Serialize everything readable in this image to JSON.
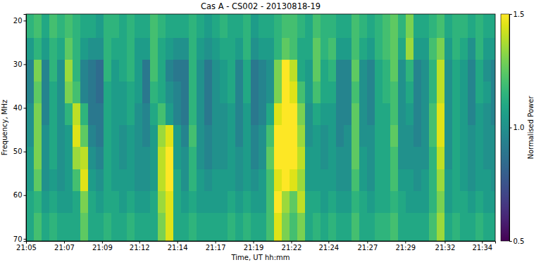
{
  "chart_data": {
    "type": "heatmap",
    "title": "Cas A - CS002 - 20130818-19",
    "x_label": "Time, UT hh:mm",
    "y_label": "Frequency, MHz",
    "color": "viridis",
    "x": [
      5,
      5.5,
      6,
      6.5,
      7,
      7.5,
      8,
      8.5,
      9,
      9.5,
      10,
      10.5,
      11,
      11.5,
      12,
      12.5,
      13,
      13.5,
      14,
      14.5,
      15,
      15.5,
      16,
      16.5,
      17,
      17.5,
      18,
      18.5,
      19,
      19.5,
      20,
      20.5,
      21,
      21.5,
      22,
      22.5,
      23,
      23.5,
      24,
      24.5,
      25,
      25.5,
      26,
      26.5,
      27,
      27.5,
      28,
      28.5,
      29,
      29.5,
      30,
      30.5,
      31,
      31.5,
      32,
      32.5,
      33,
      33.5,
      34,
      34.5,
      35,
      35.5
    ],
    "y": [
      18.5,
      24,
      29,
      34,
      39,
      44,
      49,
      54,
      59,
      64,
      70.5
    ],
    "xlim": [
      5,
      35.25
    ],
    "xticks": [
      {
        "value": 5,
        "label": "21:05"
      },
      {
        "value": 7.45,
        "label": "21:07"
      },
      {
        "value": 9.9,
        "label": "21:09"
      },
      {
        "value": 12.3,
        "label": "21:12"
      },
      {
        "value": 14.75,
        "label": "21:14"
      },
      {
        "value": 17.2,
        "label": "21:17"
      },
      {
        "value": 19.65,
        "label": "21:19"
      },
      {
        "value": 22.1,
        "label": "21:22"
      },
      {
        "value": 24.5,
        "label": "21:24"
      },
      {
        "value": 27,
        "label": "21:27"
      },
      {
        "value": 29.45,
        "label": "21:29"
      },
      {
        "value": 32,
        "label": "21:32"
      },
      {
        "value": 34.4,
        "label": "21:34"
      }
    ],
    "ylim": [
      18.5,
      70.5
    ],
    "yticks": [
      20,
      30,
      40,
      50,
      60,
      70
    ],
    "colorbar": {
      "label": "Normalised Power",
      "range": [
        0.5,
        1.5
      ],
      "ticks": [
        0.5,
        {
          "value": 1,
          "label": "1.0"
        },
        1.5
      ]
    },
    "cells": [
      [
        1.15,
        1.2,
        1.1,
        1.2,
        1.15,
        1.2,
        1.15,
        1.1,
        1.1,
        1.05,
        1.15,
        1.15,
        1.1,
        1.15,
        1.1,
        1.1,
        1.2,
        1.15,
        1.1,
        1.1,
        1.1,
        1.15,
        1.1,
        1.05,
        1.1,
        1.15,
        1.1,
        1.1,
        1.15,
        1.05,
        1.1,
        1.1,
        1.15,
        1.2,
        1.2,
        1.15,
        1.1,
        1.2,
        1.15,
        1.15,
        1.1,
        1.1,
        1.2,
        1.15,
        1.1,
        1.15,
        1.2,
        1.25,
        1.15,
        1.3,
        1.1,
        1.1,
        1.15,
        1.2,
        1.1,
        1.15,
        1.15,
        1.1,
        1.15,
        1.1,
        1.1
      ],
      [
        1.05,
        1.15,
        1.05,
        1.15,
        1.1,
        1.25,
        1.15,
        1.05,
        1.0,
        1.0,
        1.15,
        1.1,
        1.1,
        1.15,
        1.05,
        1.05,
        1.2,
        1.1,
        1.05,
        1.0,
        1.0,
        1.15,
        1.05,
        1.0,
        1.05,
        1.1,
        1.1,
        1.05,
        1.15,
        1.0,
        1.05,
        1.05,
        1.15,
        1.25,
        1.2,
        1.1,
        1.1,
        1.25,
        1.15,
        1.2,
        1.05,
        1.05,
        1.2,
        1.1,
        1.05,
        1.15,
        1.2,
        1.25,
        1.1,
        1.35,
        1.05,
        1.05,
        1.2,
        1.3,
        1.05,
        1.15,
        1.1,
        1.0,
        1.15,
        1.05,
        1.05
      ],
      [
        0.95,
        1.3,
        0.95,
        1.15,
        1.0,
        1.35,
        1.15,
        0.95,
        0.9,
        0.85,
        1.15,
        1.05,
        1.1,
        1.15,
        1.05,
        0.9,
        1.2,
        1.1,
        0.95,
        0.9,
        0.9,
        1.15,
        1.0,
        0.9,
        1.0,
        1.05,
        1.1,
        0.95,
        1.1,
        0.9,
        0.95,
        1.0,
        1.3,
        1.5,
        1.4,
        1.1,
        1.05,
        1.25,
        1.1,
        1.15,
        0.95,
        0.95,
        1.25,
        1.0,
        0.95,
        1.1,
        1.15,
        1.25,
        1.0,
        1.15,
        0.95,
        1.0,
        1.15,
        1.4,
        1.0,
        1.1,
        1.05,
        0.95,
        1.1,
        1.0,
        0.95
      ],
      [
        0.95,
        1.25,
        0.95,
        1.1,
        1.0,
        1.3,
        1.2,
        0.95,
        0.9,
        0.85,
        1.1,
        1.05,
        1.05,
        1.1,
        1.05,
        0.9,
        1.15,
        1.1,
        1.0,
        0.95,
        0.9,
        1.15,
        1.0,
        0.9,
        1.0,
        1.05,
        1.1,
        0.95,
        1.1,
        0.9,
        0.95,
        1.0,
        1.3,
        1.5,
        1.45,
        1.2,
        1.05,
        1.2,
        1.1,
        1.1,
        0.95,
        0.95,
        1.2,
        1.0,
        0.95,
        1.1,
        1.15,
        1.2,
        1.0,
        1.1,
        0.95,
        1.0,
        1.15,
        1.4,
        1.0,
        1.1,
        1.05,
        0.95,
        1.1,
        1.05,
        0.95
      ],
      [
        1.0,
        1.3,
        0.95,
        1.1,
        1.0,
        1.15,
        1.4,
        1.15,
        0.9,
        0.9,
        1.1,
        1.05,
        1.05,
        1.1,
        1.0,
        0.95,
        1.1,
        1.2,
        1.05,
        0.95,
        0.9,
        1.15,
        1.0,
        0.9,
        1.0,
        1.0,
        1.05,
        0.95,
        1.05,
        0.9,
        0.95,
        1.1,
        1.45,
        1.5,
        1.5,
        1.3,
        1.0,
        1.1,
        1.05,
        1.05,
        0.95,
        0.95,
        1.25,
        1.0,
        0.95,
        1.1,
        1.1,
        1.2,
        1.0,
        1.05,
        0.95,
        1.0,
        1.2,
        1.45,
        1.0,
        1.1,
        1.05,
        0.95,
        1.05,
        1.0,
        0.95
      ],
      [
        1.0,
        1.3,
        1.0,
        1.1,
        1.0,
        1.05,
        1.45,
        1.25,
        0.95,
        0.9,
        1.1,
        1.05,
        1.0,
        1.05,
        1.0,
        0.95,
        1.05,
        1.35,
        1.45,
        1.05,
        0.95,
        1.2,
        1.0,
        0.95,
        1.0,
        1.0,
        1.05,
        0.95,
        1.05,
        0.95,
        1.0,
        1.2,
        1.5,
        1.5,
        1.5,
        1.35,
        1.0,
        1.05,
        1.0,
        1.05,
        0.95,
        1.0,
        1.25,
        1.0,
        1.0,
        1.1,
        1.1,
        1.25,
        1.0,
        1.0,
        0.95,
        1.0,
        1.2,
        1.45,
        1.0,
        1.1,
        1.05,
        1.0,
        1.05,
        1.0,
        1.0
      ],
      [
        1.05,
        1.3,
        1.0,
        1.1,
        1.0,
        1.05,
        1.35,
        1.4,
        1.0,
        0.95,
        1.1,
        1.05,
        1.0,
        1.05,
        1.0,
        1.0,
        1.05,
        1.4,
        1.5,
        1.05,
        1.0,
        1.15,
        1.0,
        0.95,
        1.0,
        1.0,
        1.05,
        1.0,
        1.05,
        0.95,
        1.0,
        1.25,
        1.5,
        1.5,
        1.5,
        1.4,
        1.05,
        1.05,
        1.0,
        1.05,
        1.0,
        1.0,
        1.25,
        1.05,
        1.0,
        1.1,
        1.1,
        1.2,
        1.0,
        1.0,
        1.0,
        1.0,
        1.15,
        1.4,
        1.0,
        1.1,
        1.05,
        1.0,
        1.05,
        1.0,
        1.0
      ],
      [
        1.05,
        1.25,
        1.0,
        1.05,
        1.0,
        1.05,
        1.2,
        1.45,
        1.05,
        1.0,
        1.1,
        1.05,
        1.05,
        1.05,
        1.0,
        1.0,
        1.05,
        1.4,
        1.5,
        1.1,
        1.0,
        1.15,
        1.05,
        1.0,
        1.05,
        1.05,
        1.05,
        1.0,
        1.05,
        1.0,
        1.05,
        1.2,
        1.45,
        1.5,
        1.45,
        1.35,
        1.05,
        1.05,
        1.05,
        1.05,
        1.0,
        1.0,
        1.2,
        1.05,
        1.0,
        1.1,
        1.1,
        1.2,
        1.05,
        1.05,
        1.0,
        1.05,
        1.15,
        1.35,
        1.05,
        1.1,
        1.05,
        1.0,
        1.05,
        1.05,
        1.0
      ],
      [
        1.1,
        1.15,
        1.05,
        1.1,
        1.05,
        1.05,
        1.1,
        1.3,
        1.1,
        1.05,
        1.1,
        1.1,
        1.05,
        1.1,
        1.05,
        1.05,
        1.1,
        1.35,
        1.45,
        1.1,
        1.05,
        1.1,
        1.05,
        1.05,
        1.05,
        1.05,
        1.1,
        1.05,
        1.1,
        1.05,
        1.05,
        1.2,
        1.5,
        1.35,
        1.25,
        1.4,
        1.1,
        1.1,
        1.05,
        1.1,
        1.05,
        1.05,
        1.15,
        1.1,
        1.05,
        1.1,
        1.1,
        1.15,
        1.1,
        1.05,
        1.05,
        1.05,
        1.15,
        1.3,
        1.05,
        1.1,
        1.1,
        1.05,
        1.1,
        1.05,
        1.05
      ],
      [
        1.1,
        1.2,
        1.1,
        1.15,
        1.1,
        1.1,
        1.1,
        1.25,
        1.1,
        1.1,
        1.15,
        1.1,
        1.1,
        1.15,
        1.1,
        1.1,
        1.1,
        1.3,
        1.45,
        1.1,
        1.1,
        1.15,
        1.1,
        1.1,
        1.1,
        1.1,
        1.15,
        1.1,
        1.15,
        1.1,
        1.1,
        1.2,
        1.45,
        1.3,
        1.2,
        1.3,
        1.1,
        1.15,
        1.1,
        1.15,
        1.1,
        1.1,
        1.2,
        1.1,
        1.1,
        1.15,
        1.15,
        1.2,
        1.1,
        1.1,
        1.1,
        1.1,
        1.2,
        1.35,
        1.1,
        1.15,
        1.1,
        1.1,
        1.15,
        1.1,
        1.1
      ]
    ]
  }
}
